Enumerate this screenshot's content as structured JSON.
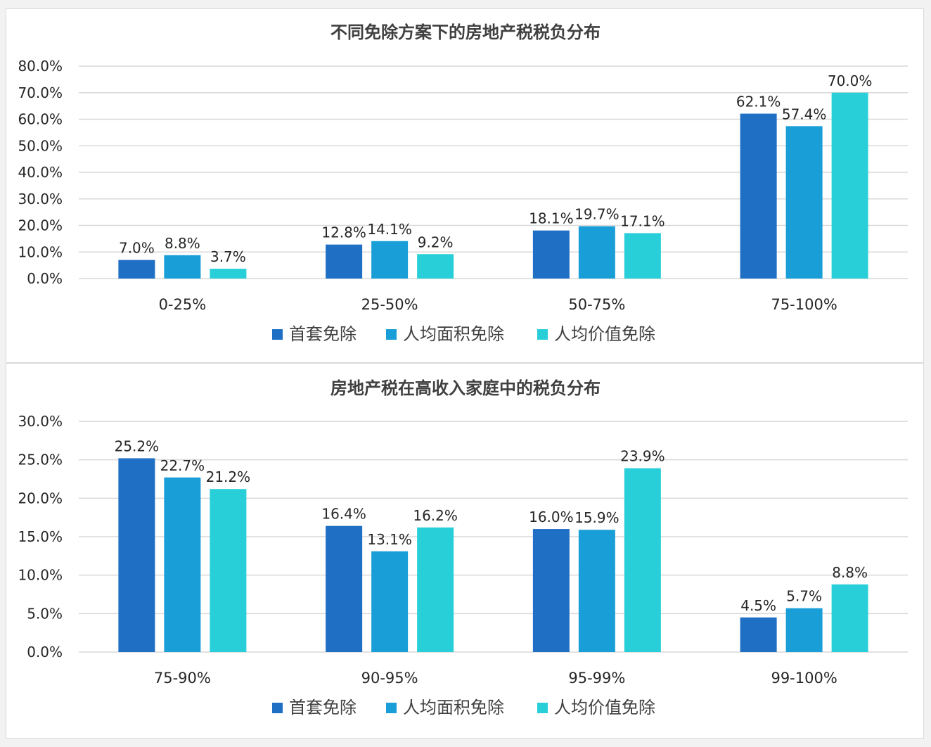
{
  "chart_data": [
    {
      "type": "bar",
      "title": "不同免除方案下的房地产税税负分布",
      "categories": [
        "0-25%",
        "25-50%",
        "50-75%",
        "75-100%"
      ],
      "series": [
        {
          "name": "首套免除",
          "values": [
            7.0,
            12.8,
            18.1,
            62.1
          ],
          "labels": [
            "7.0%",
            "12.8%",
            "18.1%",
            "62.1%"
          ],
          "color": "#1f6fc5"
        },
        {
          "name": "人均面积免除",
          "values": [
            8.8,
            14.1,
            19.7,
            57.4
          ],
          "labels": [
            "8.8%",
            "14.1%",
            "19.7%",
            "57.4%"
          ],
          "color": "#1a9ed8"
        },
        {
          "name": "人均价值免除",
          "values": [
            3.7,
            9.2,
            17.1,
            70.0
          ],
          "labels": [
            "3.7%",
            "9.2%",
            "17.1%",
            "70.0%"
          ],
          "color": "#29cfd8"
        }
      ],
      "yticks": [
        "0.0%",
        "10.0%",
        "20.0%",
        "30.0%",
        "40.0%",
        "50.0%",
        "60.0%",
        "70.0%",
        "80.0%"
      ],
      "ylim": [
        0,
        80
      ],
      "grid": true,
      "legend": "bottom"
    },
    {
      "type": "bar",
      "title": "房地产税在高收入家庭中的税负分布",
      "categories": [
        "75-90%",
        "90-95%",
        "95-99%",
        "99-100%"
      ],
      "series": [
        {
          "name": "首套免除",
          "values": [
            25.2,
            16.4,
            16.0,
            4.5
          ],
          "labels": [
            "25.2%",
            "16.4%",
            "16.0%",
            "4.5%"
          ],
          "color": "#1f6fc5"
        },
        {
          "name": "人均面积免除",
          "values": [
            22.7,
            13.1,
            15.9,
            5.7
          ],
          "labels": [
            "22.7%",
            "13.1%",
            "15.9%",
            "5.7%"
          ],
          "color": "#1a9ed8"
        },
        {
          "name": "人均价值免除",
          "values": [
            21.2,
            16.2,
            23.9,
            8.8
          ],
          "labels": [
            "21.2%",
            "16.2%",
            "23.9%",
            "8.8%"
          ],
          "color": "#29cfd8"
        }
      ],
      "yticks": [
        "0.0%",
        "5.0%",
        "10.0%",
        "15.0%",
        "20.0%",
        "25.0%",
        "30.0%"
      ],
      "ylim": [
        0,
        30
      ],
      "grid": true,
      "legend": "bottom"
    }
  ]
}
